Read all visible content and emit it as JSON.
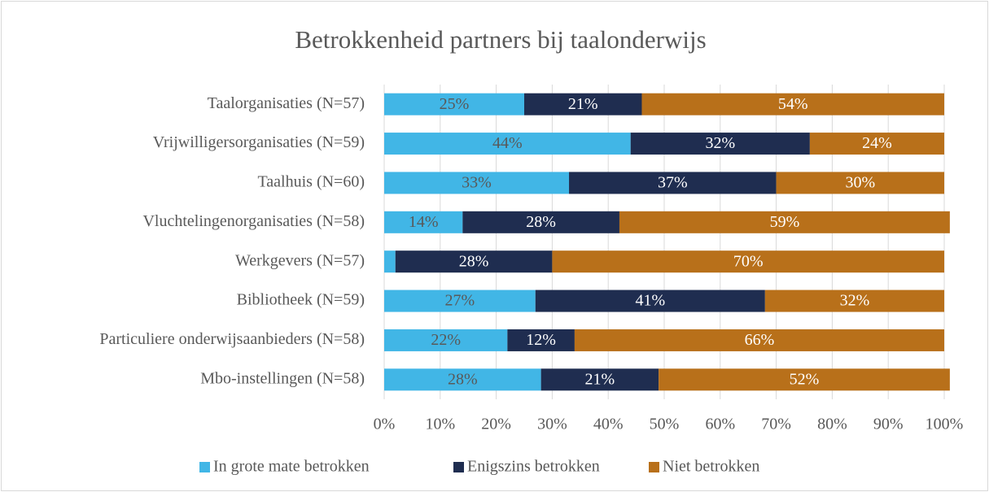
{
  "chart_data": {
    "type": "stacked-barh",
    "title": "Betrokkenheid partners bij taalonderwijs",
    "categories": [
      "Taalorganisaties (N=57)",
      "Vrijwilligersorganisaties (N=59)",
      "Taalhuis (N=60)",
      "Vluchtelingenorganisaties (N=58)",
      "Werkgevers (N=57)",
      "Bibliotheek (N=59)",
      "Particuliere onderwijsaanbieders (N=58)",
      "Mbo-instellingen (N=58)"
    ],
    "series": [
      {
        "name": "In grote mate betrokken",
        "color": "#41b6e6",
        "values": [
          25,
          44,
          33,
          14,
          2,
          27,
          22,
          28
        ],
        "value_labels": [
          "25%",
          "44%",
          "33%",
          "14%",
          null,
          "27%",
          "22%",
          "28%"
        ]
      },
      {
        "name": "Enigszins betrokken",
        "color": "#1f2d50",
        "values": [
          21,
          32,
          37,
          28,
          28,
          41,
          12,
          21
        ],
        "value_labels": [
          "21%",
          "32%",
          "37%",
          "28%",
          "28%",
          "41%",
          "12%",
          "21%"
        ]
      },
      {
        "name": "Niet betrokken",
        "color": "#b8701a",
        "values": [
          54,
          24,
          30,
          59,
          70,
          32,
          66,
          52
        ],
        "value_labels": [
          "54%",
          "24%",
          "30%",
          "59%",
          "70%",
          "32%",
          "66%",
          "52%"
        ]
      }
    ],
    "xlim": [
      0,
      100
    ],
    "xticks": [
      {
        "value": 0,
        "label": "0%"
      },
      {
        "value": 10,
        "label": "10%"
      },
      {
        "value": 20,
        "label": "20%"
      },
      {
        "value": 30,
        "label": "30%"
      },
      {
        "value": 40,
        "label": "40%"
      },
      {
        "value": 50,
        "label": "50%"
      },
      {
        "value": 60,
        "label": "60%"
      },
      {
        "value": 70,
        "label": "70%"
      },
      {
        "value": 80,
        "label": "80%"
      },
      {
        "value": 90,
        "label": "90%"
      },
      {
        "value": 100,
        "label": "100%"
      }
    ],
    "grid": true,
    "legend": "bottom"
  }
}
